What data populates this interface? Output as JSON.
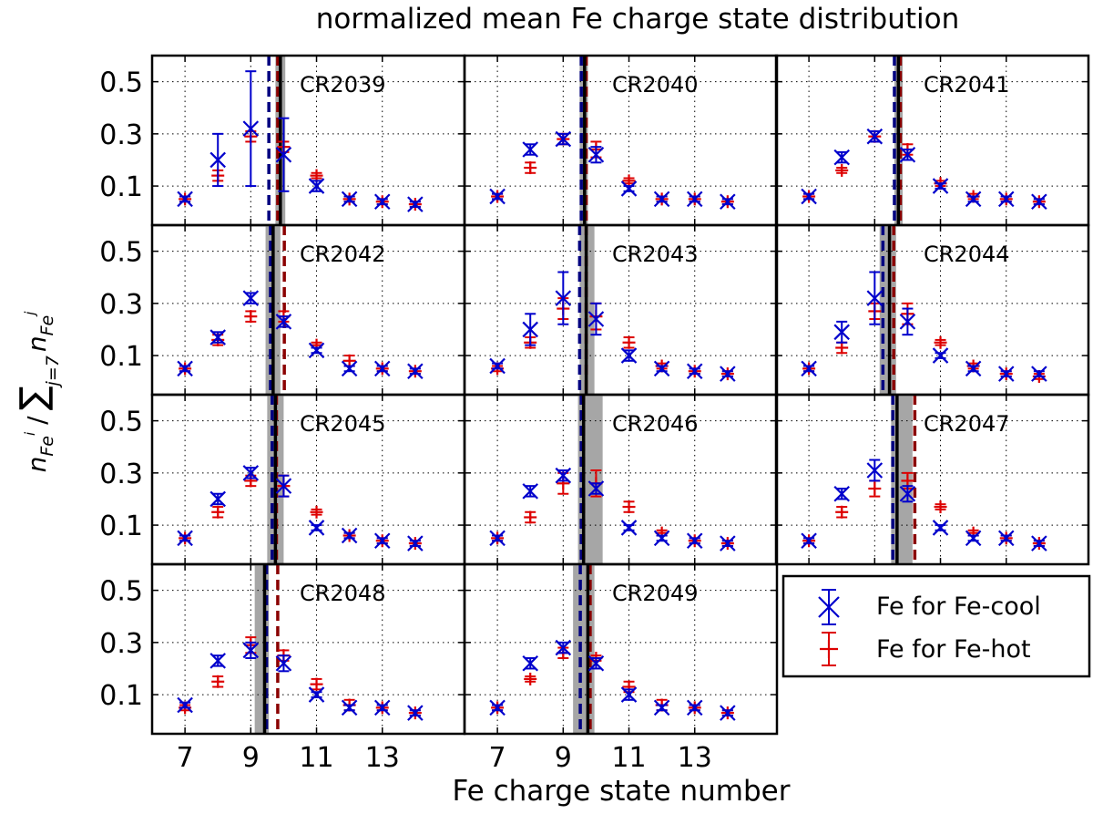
{
  "chart_data": {
    "type": "scatter",
    "title": "normalized mean Fe charge state distribution",
    "xlabel": "Fe charge state number",
    "ylabel": "n_Fe^i / Σ_{j=7} n_Fe^j",
    "ylabel_main": "n",
    "ylabel_main_sub": "Fe",
    "ylabel_main_sup": "i",
    "ylabel_slash": "/",
    "ylabel_sigma": "∑",
    "ylabel_sigma_sub": "j=7",
    "ylabel_den": "n",
    "ylabel_den_sub": "Fe",
    "ylabel_den_sup": "j",
    "xlim": [
      6,
      15.5
    ],
    "ylim": [
      -0.05,
      0.6
    ],
    "x_ticks": [
      7,
      9,
      11,
      13
    ],
    "x_tick_labels": [
      "7",
      "9",
      "11",
      "13"
    ],
    "y_ticks": [
      0.1,
      0.3,
      0.5
    ],
    "y_tick_labels": [
      "0.1",
      "0.3",
      "0.5"
    ],
    "grid": true,
    "legend": {
      "position": "bottom-right",
      "entries": [
        {
          "label": "Fe for Fe-cool",
          "color": "#0000cc",
          "marker": "x-errorbar"
        },
        {
          "label": "Fe for Fe-hot",
          "color": "#dd0000",
          "marker": "plus-errorbar"
        }
      ]
    },
    "colors": {
      "cool": "#0000cc",
      "hot": "#dd0000",
      "mean_line": "#000000",
      "band": "#a6a6a6"
    },
    "x": [
      7,
      8,
      9,
      10,
      11,
      12,
      13,
      14
    ],
    "panels": [
      {
        "label": "CR2039",
        "band": [
          9.75,
          10.05
        ],
        "mean": 9.9,
        "cool_mean": 9.55,
        "hot_mean": 9.82,
        "cool": [
          0.05,
          0.2,
          0.32,
          0.22,
          0.1,
          0.05,
          0.04,
          0.03
        ],
        "cool_err": [
          0.01,
          0.1,
          0.22,
          0.14,
          0.02,
          0.01,
          0.01,
          0.01
        ],
        "hot": [
          0.05,
          0.14,
          0.29,
          0.25,
          0.14,
          0.05,
          0.04,
          0.03
        ],
        "hot_err": [
          0.01,
          0.02,
          0.02,
          0.02,
          0.01,
          0.01,
          0.01,
          0.01
        ]
      },
      {
        "label": "CR2040",
        "band": [
          9.5,
          9.75
        ],
        "mean": 9.65,
        "cool_mean": 9.55,
        "hot_mean": 9.7,
        "cool": [
          0.06,
          0.24,
          0.28,
          0.22,
          0.09,
          0.05,
          0.05,
          0.04
        ],
        "cool_err": [
          0.01,
          0.02,
          0.02,
          0.03,
          0.01,
          0.01,
          0.01,
          0.01
        ],
        "hot": [
          0.06,
          0.17,
          0.28,
          0.24,
          0.12,
          0.05,
          0.05,
          0.04
        ],
        "hot_err": [
          0.01,
          0.02,
          0.02,
          0.03,
          0.01,
          0.01,
          0.01,
          0.01
        ]
      },
      {
        "label": "CR2041",
        "band": [
          9.6,
          9.85
        ],
        "mean": 9.72,
        "cool_mean": 9.6,
        "hot_mean": 9.78,
        "cool": [
          0.06,
          0.21,
          0.29,
          0.22,
          0.1,
          0.05,
          0.05,
          0.04
        ],
        "cool_err": [
          0.01,
          0.02,
          0.02,
          0.02,
          0.01,
          0.01,
          0.01,
          0.01
        ],
        "hot": [
          0.06,
          0.16,
          0.29,
          0.24,
          0.11,
          0.06,
          0.05,
          0.04
        ],
        "hot_err": [
          0.01,
          0.01,
          0.02,
          0.02,
          0.01,
          0.01,
          0.01,
          0.01
        ]
      },
      {
        "label": "CR2042",
        "band": [
          9.45,
          9.9
        ],
        "mean": 9.68,
        "cool_mean": 9.6,
        "hot_mean": 10.02,
        "cool": [
          0.05,
          0.17,
          0.32,
          0.23,
          0.12,
          0.05,
          0.05,
          0.04
        ],
        "cool_err": [
          0.01,
          0.02,
          0.02,
          0.02,
          0.01,
          0.01,
          0.01,
          0.01
        ],
        "hot": [
          0.05,
          0.16,
          0.25,
          0.25,
          0.14,
          0.08,
          0.05,
          0.04
        ],
        "hot_err": [
          0.01,
          0.02,
          0.02,
          0.02,
          0.01,
          0.02,
          0.01,
          0.01
        ]
      },
      {
        "label": "CR2043",
        "band": [
          9.5,
          9.95
        ],
        "mean": 9.7,
        "cool_mean": 9.5,
        "hot_mean": 9.7,
        "cool": [
          0.06,
          0.2,
          0.32,
          0.24,
          0.1,
          0.05,
          0.04,
          0.03
        ],
        "cool_err": [
          0.01,
          0.06,
          0.1,
          0.06,
          0.02,
          0.01,
          0.01,
          0.01
        ],
        "hot": [
          0.05,
          0.15,
          0.28,
          0.25,
          0.15,
          0.06,
          0.04,
          0.03
        ],
        "hot_err": [
          0.01,
          0.02,
          0.04,
          0.05,
          0.02,
          0.01,
          0.01,
          0.01
        ]
      },
      {
        "label": "CR2044",
        "band": [
          9.15,
          9.65
        ],
        "mean": 9.45,
        "cool_mean": 9.25,
        "hot_mean": 9.58,
        "cool": [
          0.05,
          0.19,
          0.32,
          0.23,
          0.1,
          0.05,
          0.03,
          0.03
        ],
        "cool_err": [
          0.01,
          0.04,
          0.1,
          0.05,
          0.01,
          0.01,
          0.01,
          0.01
        ],
        "hot": [
          0.05,
          0.13,
          0.27,
          0.26,
          0.15,
          0.06,
          0.03,
          0.02
        ],
        "hot_err": [
          0.01,
          0.02,
          0.03,
          0.04,
          0.01,
          0.01,
          0.01,
          0.01
        ]
      },
      {
        "label": "CR2045",
        "band": [
          9.5,
          10.0
        ],
        "mean": 9.75,
        "cool_mean": 9.65,
        "hot_mean": 9.78,
        "cool": [
          0.05,
          0.2,
          0.3,
          0.25,
          0.09,
          0.06,
          0.04,
          0.03
        ],
        "cool_err": [
          0.01,
          0.02,
          0.02,
          0.04,
          0.01,
          0.01,
          0.01,
          0.01
        ],
        "hot": [
          0.05,
          0.15,
          0.27,
          0.25,
          0.15,
          0.06,
          0.04,
          0.03
        ],
        "hot_err": [
          0.01,
          0.02,
          0.02,
          0.04,
          0.01,
          0.01,
          0.01,
          0.01
        ]
      },
      {
        "label": "CR2046",
        "band": [
          9.45,
          10.2
        ],
        "mean": 9.62,
        "cool_mean": 9.55,
        "hot_mean": 9.62,
        "cool": [
          0.05,
          0.23,
          0.29,
          0.24,
          0.09,
          0.05,
          0.04,
          0.03
        ],
        "cool_err": [
          0.01,
          0.02,
          0.02,
          0.02,
          0.01,
          0.01,
          0.01,
          0.01
        ],
        "hot": [
          0.05,
          0.13,
          0.26,
          0.26,
          0.17,
          0.07,
          0.04,
          0.03
        ],
        "hot_err": [
          0.01,
          0.02,
          0.04,
          0.05,
          0.02,
          0.01,
          0.01,
          0.01
        ]
      },
      {
        "label": "CR2047",
        "band": [
          9.5,
          10.15
        ],
        "mean": 9.68,
        "cool_mean": 9.55,
        "hot_mean": 10.22,
        "cool": [
          0.04,
          0.22,
          0.31,
          0.22,
          0.09,
          0.05,
          0.05,
          0.03
        ],
        "cool_err": [
          0.01,
          0.02,
          0.04,
          0.03,
          0.01,
          0.01,
          0.01,
          0.01
        ],
        "hot": [
          0.04,
          0.15,
          0.24,
          0.27,
          0.17,
          0.07,
          0.05,
          0.03
        ],
        "hot_err": [
          0.01,
          0.02,
          0.03,
          0.03,
          0.01,
          0.01,
          0.01,
          0.01
        ]
      },
      {
        "label": "CR2048",
        "band": [
          9.12,
          9.55
        ],
        "mean": 9.42,
        "cool_mean": 9.48,
        "hot_mean": 9.82,
        "cool": [
          0.06,
          0.23,
          0.27,
          0.22,
          0.1,
          0.05,
          0.05,
          0.03
        ],
        "cool_err": [
          0.01,
          0.02,
          0.03,
          0.03,
          0.01,
          0.01,
          0.01,
          0.01
        ],
        "hot": [
          0.05,
          0.15,
          0.29,
          0.25,
          0.14,
          0.06,
          0.05,
          0.03
        ],
        "hot_err": [
          0.01,
          0.02,
          0.03,
          0.02,
          0.02,
          0.02,
          0.01,
          0.01
        ]
      },
      {
        "label": "CR2049",
        "band": [
          9.3,
          9.95
        ],
        "mean": 9.75,
        "cool_mean": 9.52,
        "hot_mean": 9.82,
        "cool": [
          0.05,
          0.22,
          0.28,
          0.22,
          0.1,
          0.05,
          0.05,
          0.03
        ],
        "cool_err": [
          0.01,
          0.02,
          0.02,
          0.02,
          0.02,
          0.01,
          0.01,
          0.01
        ],
        "hot": [
          0.05,
          0.16,
          0.26,
          0.24,
          0.13,
          0.06,
          0.05,
          0.03
        ],
        "hot_err": [
          0.01,
          0.01,
          0.02,
          0.01,
          0.02,
          0.02,
          0.01,
          0.01
        ]
      }
    ]
  }
}
